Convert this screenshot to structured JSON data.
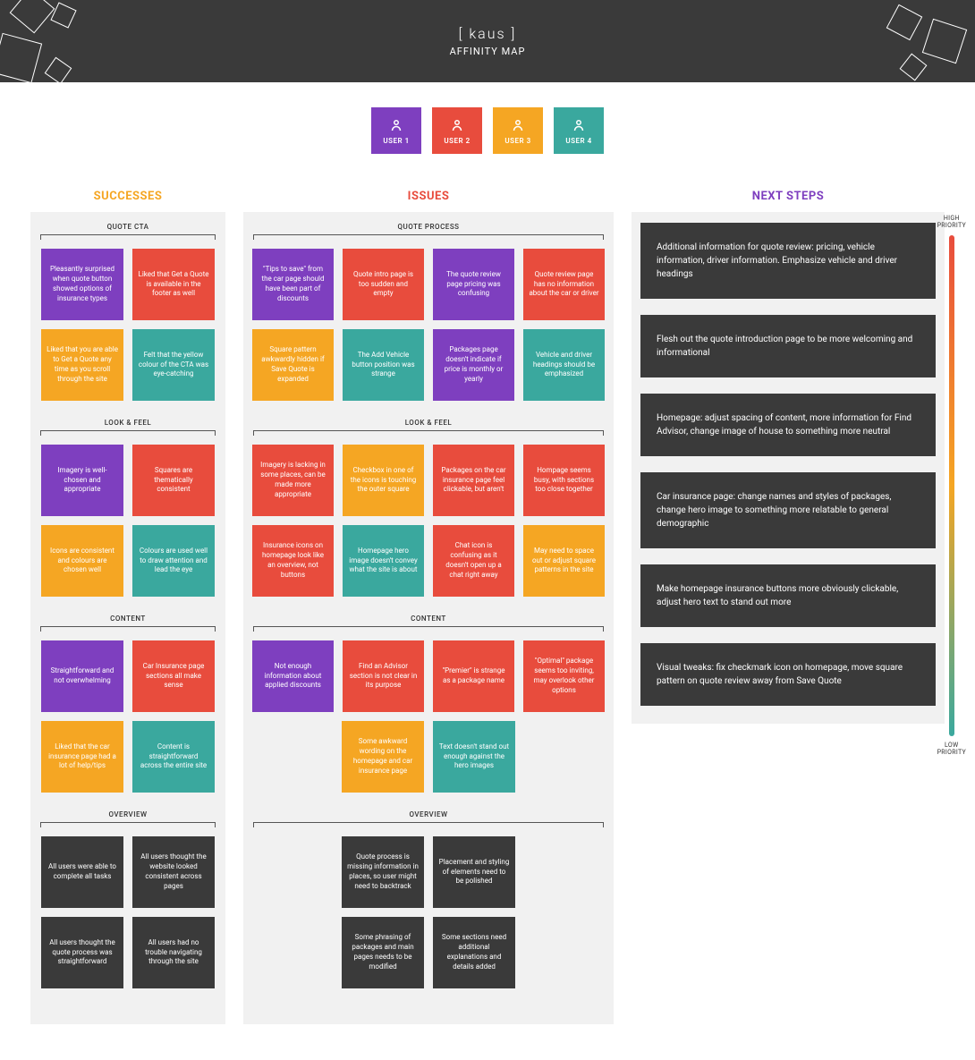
{
  "header": {
    "logo": "[ kaus ]",
    "subtitle": "AFFINITY MAP",
    "bg": "#3a3a3a"
  },
  "colors": {
    "user1": "#7e3fbf",
    "user2": "#e84c3d",
    "user3": "#f5a623",
    "user4": "#3aa89e",
    "dark": "#3a3a3a",
    "panel": "#f1f1f1"
  },
  "legend": [
    {
      "label": "USER 1",
      "color": "#7e3fbf"
    },
    {
      "label": "USER 2",
      "color": "#e84c3d"
    },
    {
      "label": "USER 3",
      "color": "#f5a623"
    },
    {
      "label": "USER 4",
      "color": "#3aa89e"
    }
  ],
  "columns": {
    "successes": {
      "title": "SUCCESSES",
      "titleColor": "#f5a623"
    },
    "issues": {
      "title": "ISSUES",
      "titleColor": "#e84c3d"
    },
    "next": {
      "title": "NEXT STEPS",
      "titleColor": "#7e3fbf"
    }
  },
  "successes": {
    "groups": [
      {
        "title": "QUOTE CTA",
        "rows": [
          [
            {
              "text": "Pleasantly surprised when quote button showed options of insurance types",
              "color": "#7e3fbf"
            },
            {
              "text": "Liked that Get a Quote is available in the footer as well",
              "color": "#e84c3d"
            }
          ],
          [
            {
              "text": "Liked that you are able to Get a Quote any time as you scroll through the site",
              "color": "#f5a623"
            },
            {
              "text": "Felt that the yellow colour of the CTA was eye-catching",
              "color": "#3aa89e"
            }
          ]
        ]
      },
      {
        "title": "LOOK & FEEL",
        "rows": [
          [
            {
              "text": "Imagery is well-chosen and appropriate",
              "color": "#7e3fbf"
            },
            {
              "text": "Squares are thematically consistent",
              "color": "#e84c3d"
            }
          ],
          [
            {
              "text": "Icons are consistent and colours are chosen well",
              "color": "#f5a623"
            },
            {
              "text": "Colours are used well to draw attention and lead the eye",
              "color": "#3aa89e"
            }
          ]
        ]
      },
      {
        "title": "CONTENT",
        "rows": [
          [
            {
              "text": "Straightforward and not overwhelming",
              "color": "#7e3fbf"
            },
            {
              "text": "Car Insurance page sections all make sense",
              "color": "#e84c3d"
            }
          ],
          [
            {
              "text": "Liked that the car insurance page had a lot of help/tips",
              "color": "#f5a623"
            },
            {
              "text": "Content is straightforward across the entire site",
              "color": "#3aa89e"
            }
          ]
        ]
      },
      {
        "title": "OVERVIEW",
        "rows": [
          [
            {
              "text": "All users were able to complete all tasks",
              "color": "#3a3a3a"
            },
            {
              "text": "All users thought the website looked consistent across pages",
              "color": "#3a3a3a"
            }
          ],
          [
            {
              "text": "All users thought the quote process was straightforward",
              "color": "#3a3a3a"
            },
            {
              "text": "All users had no trouble navigating through the site",
              "color": "#3a3a3a"
            }
          ]
        ]
      }
    ]
  },
  "issues": {
    "groups": [
      {
        "title": "QUOTE PROCESS",
        "rows": [
          [
            {
              "text": "\"Tips to save\" from the car page should have been part of discounts",
              "color": "#7e3fbf"
            },
            {
              "text": "Quote intro page is too sudden and empty",
              "color": "#e84c3d"
            },
            {
              "text": "The quote review page pricing was confusing",
              "color": "#7e3fbf"
            },
            {
              "text": "Quote review page has no information about the car or driver",
              "color": "#e84c3d"
            }
          ],
          [
            {
              "text": "Square pattern awkwardly hidden if Save Quote is expanded",
              "color": "#f5a623"
            },
            {
              "text": "The Add Vehicle button position was strange",
              "color": "#3aa89e"
            },
            {
              "text": "Packages page doesn't indicate if price is monthly or yearly",
              "color": "#7e3fbf"
            },
            {
              "text": "Vehicle and driver headings should be emphasized",
              "color": "#3aa89e"
            }
          ]
        ]
      },
      {
        "title": "LOOK & FEEL",
        "rows": [
          [
            {
              "text": "Imagery is lacking in some places, can be made more appropriate",
              "color": "#e84c3d"
            },
            {
              "text": "Checkbox in one of the icons is touching the outer square",
              "color": "#f5a623"
            },
            {
              "text": "Packages on the car insurance page feel clickable, but aren't",
              "color": "#e84c3d"
            },
            {
              "text": "Hompage seems busy, with sections too close together",
              "color": "#e84c3d"
            }
          ],
          [
            {
              "text": "Insurance icons on homepage look like an overview, not buttons",
              "color": "#e84c3d"
            },
            {
              "text": "Homepage hero image doesn't convey what the site is about",
              "color": "#3aa89e"
            },
            {
              "text": "Chat icon is confusing as it doesn't open up a chat right away",
              "color": "#e84c3d"
            },
            {
              "text": "May need to space out or adjust square patterns in the site",
              "color": "#f5a623"
            }
          ]
        ]
      },
      {
        "title": "CONTENT",
        "rows": [
          [
            {
              "text": "Not enough information about applied discounts",
              "color": "#7e3fbf"
            },
            {
              "text": "Find an Advisor section is not clear in its purpose",
              "color": "#e84c3d"
            },
            {
              "text": "\"Premier\" is strange as a package name",
              "color": "#e84c3d"
            },
            {
              "text": "\"Optimal\" package seems too inviting, may overlook other options",
              "color": "#e84c3d"
            }
          ],
          [
            {
              "text": "Some awkward wording on the homepage and car insurance page",
              "color": "#f5a623"
            },
            {
              "text": "Text doesn't stand out enough against the hero images",
              "color": "#3aa89e"
            }
          ]
        ]
      },
      {
        "title": "OVERVIEW",
        "rows": [
          [
            {
              "text": "Quote process is missing information in places, so user might need to backtrack",
              "color": "#3a3a3a"
            },
            {
              "text": "Placement and styling of elements need to be polished",
              "color": "#3a3a3a"
            }
          ],
          [
            {
              "text": "Some phrasing of packages and main pages needs to be modified",
              "color": "#3a3a3a"
            },
            {
              "text": "Some sections need additional explanations and details added",
              "color": "#3a3a3a"
            }
          ]
        ]
      }
    ]
  },
  "nextSteps": {
    "items": [
      "Additional information for quote review: pricing, vehicle information, driver information. Emphasize vehicle and driver headings",
      "Flesh out the quote introduction page to be more welcoming and informational",
      "Homepage: adjust spacing of content, more information for Find Advisor, change image of house to something more neutral",
      "Car insurance page: change names and styles of packages, change hero image to something more relatable to general demographic",
      "Make homepage insurance buttons more obviously clickable, adjust hero text to stand out more",
      "Visual tweaks: fix checkmark icon on homepage, move square pattern on quote review away from Save Quote"
    ],
    "priorityHigh": "HIGH PRIORITY",
    "priorityLow": "LOW PRIORITY",
    "gradient": [
      "#e84c3d",
      "#f5a623",
      "#3aa89e"
    ]
  }
}
